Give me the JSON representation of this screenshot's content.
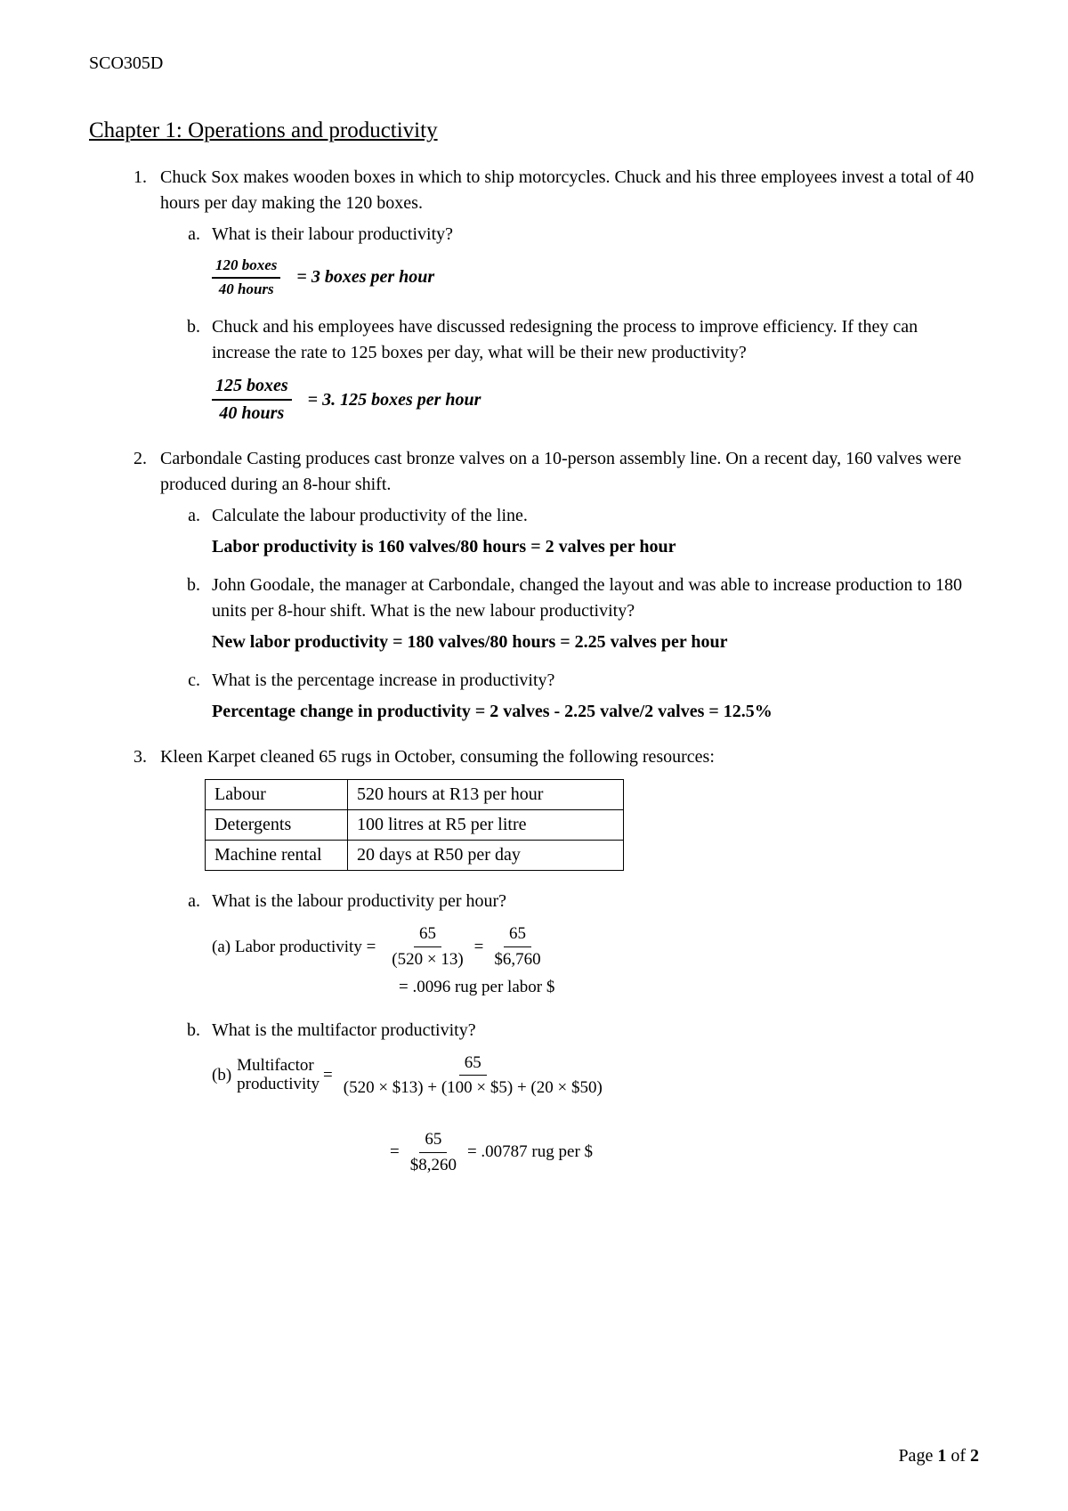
{
  "course_code": "SCO305D",
  "chapter_title": "Chapter 1: Operations and productivity",
  "q1": {
    "text": "Chuck Sox makes wooden boxes in which to ship motorcycles. Chuck and his three employees invest a total of 40 hours per day making the 120 boxes.",
    "a": {
      "prompt": "What is their labour productivity?",
      "frac_num": "120 boxes",
      "frac_den": "40 hours",
      "result": "= 3 boxes per hour"
    },
    "b": {
      "prompt": "Chuck and his employees have discussed redesigning the process to improve efficiency. If they can increase the rate to 125 boxes per day, what will be their new productivity?",
      "frac_num": "125 boxes",
      "frac_den": "40 hours",
      "result": "= 3. 125 boxes per hour"
    }
  },
  "q2": {
    "text": "Carbondale Casting produces cast bronze valves on a 10-person assembly line. On a recent day, 160 valves were produced during an 8-hour shift.",
    "a": {
      "prompt": "Calculate the labour productivity of the line.",
      "answer": "Labor productivity is 160 valves/80 hours = 2 valves per hour"
    },
    "b": {
      "prompt": "John Goodale, the manager at Carbondale, changed the layout and was able to increase production to 180 units per 8-hour shift. What is the new labour productivity?",
      "answer": "New labor productivity = 180 valves/80 hours = 2.25 valves per hour"
    },
    "c": {
      "prompt": "What is the percentage increase in productivity?",
      "answer": "Percentage change in productivity = 2 valves - 2.25 valve/2 valves = 12.5%"
    }
  },
  "q3": {
    "text": "Kleen Karpet cleaned 65 rugs in October, consuming the following resources:",
    "table": {
      "rows": [
        [
          "Labour",
          "520 hours at R13 per hour"
        ],
        [
          "Detergents",
          "100 litres at R5 per litre"
        ],
        [
          "Machine rental",
          "20 days at R50 per day"
        ]
      ]
    },
    "a": {
      "prompt": "What is the labour productivity per hour?",
      "label": "(a)  Labor productivity  =",
      "frac1_num": "65",
      "frac1_den": "(520 × 13)",
      "mid": "=",
      "frac2_num": "65",
      "frac2_den": "$6,760",
      "result": "= .0096 rug per labor $"
    },
    "b": {
      "prompt": "What is the multifactor productivity?",
      "label_pre": "(b)",
      "label_top": "Multifactor",
      "label_bot": "productivity",
      "eq": "=",
      "frac1_num": "65",
      "frac1_den": "(520 × $13) + (100 × $5) + (20 × $50)",
      "eq2": "=",
      "frac2_num": "65",
      "frac2_den": "$8,260",
      "result": "= .00787 rug per $"
    }
  },
  "footer": {
    "prefix": "Page ",
    "current": "1",
    "of": " of ",
    "total": "2"
  }
}
